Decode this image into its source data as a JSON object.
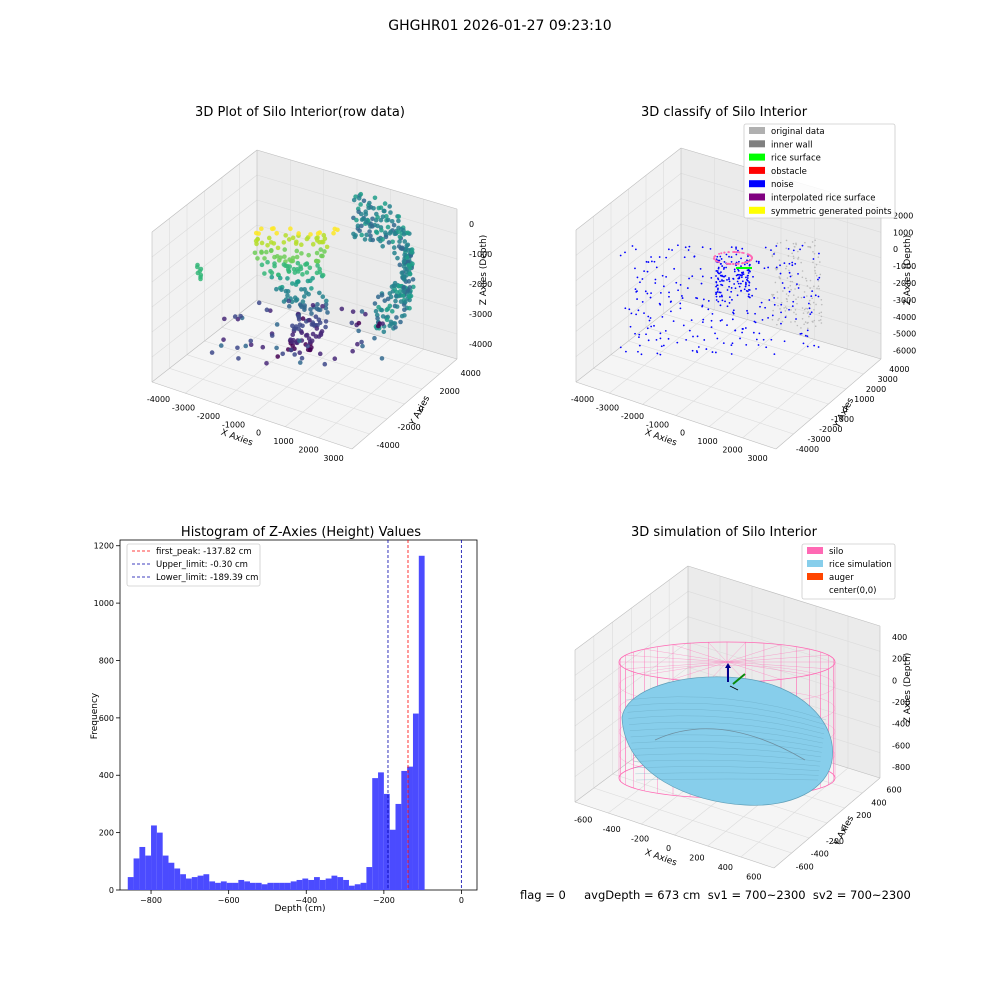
{
  "suptitle": "GHGHR01 2026-01-27 09:23:10",
  "footer": "flag = 0     avgDepth = 673 cm  sv1 = 700~2300  sv2 = 700~2300",
  "colors": {
    "hist": "#4b4bff",
    "silo": "#ff69b4",
    "rice": "#87ceeb",
    "auger": "#ff4500",
    "noise": "#0000ff"
  },
  "chart_data": [
    {
      "type": "scatter",
      "title": "3D Plot of Silo Interior(row data)",
      "xlabel": "X Axies",
      "ylabel": "Y Axies",
      "zlabel": "Z Axies (Depth)",
      "x_ticks": [
        "-4000",
        "-3000",
        "-2000",
        "-1000",
        "0",
        "1000",
        "2000",
        "3000"
      ],
      "y_ticks": [
        "-4000",
        "-2000",
        "0",
        "2000",
        "4000"
      ],
      "z_ticks": [
        "-4000",
        "-3000",
        "-2000",
        "-1000",
        "0"
      ],
      "colormap": "viridis (by depth)"
    },
    {
      "type": "scatter",
      "title": "3D classify of Silo Interior",
      "xlabel": "X Axies",
      "ylabel": "Y Axies",
      "zlabel": "Z Axies (Depth)",
      "x_ticks": [
        "-4000",
        "-3000",
        "-2000",
        "-1000",
        "0",
        "1000",
        "2000",
        "3000"
      ],
      "y_ticks": [
        "-4000",
        "-3000",
        "-2000",
        "-1000",
        "0",
        "1000",
        "2000",
        "3000",
        "4000"
      ],
      "z_ticks": [
        "-6000",
        "-5000",
        "-4000",
        "-3000",
        "-2000",
        "-1000",
        "0",
        "1000",
        "2000"
      ],
      "legend": [
        {
          "label": "original data",
          "color": "#b0b0b0"
        },
        {
          "label": "inner wall",
          "color": "#808080"
        },
        {
          "label": "rice surface",
          "color": "#00ff00"
        },
        {
          "label": "obstacle",
          "color": "#ff0000"
        },
        {
          "label": "noise",
          "color": "#0000ff"
        },
        {
          "label": "interpolated rice surface",
          "color": "#800080"
        },
        {
          "label": "symmetric generated points",
          "color": "#ffff00"
        }
      ],
      "legend_loc": "top-right"
    },
    {
      "type": "bar",
      "title": "Histogram of Z-Axies (Height) Values",
      "xlabel": "Depth (cm)",
      "ylabel": "Frequency",
      "xlim": [
        -880,
        40
      ],
      "ylim": [
        0,
        1220
      ],
      "x_ticks": [
        -800,
        -600,
        -400,
        -200,
        0
      ],
      "y_ticks": [
        0,
        200,
        400,
        600,
        800,
        1000,
        1200
      ],
      "bin_start": -860,
      "bin_width": 15,
      "values": [
        45,
        110,
        150,
        120,
        225,
        200,
        120,
        95,
        75,
        55,
        40,
        45,
        50,
        55,
        30,
        25,
        30,
        25,
        25,
        35,
        30,
        25,
        25,
        20,
        25,
        25,
        25,
        25,
        30,
        35,
        40,
        35,
        45,
        35,
        40,
        50,
        45,
        35,
        15,
        20,
        25,
        80,
        390,
        410,
        335,
        210,
        300,
        415,
        430,
        615,
        1165
      ],
      "lines": [
        {
          "label": "first_peak: -137.82 cm",
          "x": -137.82,
          "color": "#ff0000"
        },
        {
          "label": "Upper_limit: -0.30 cm",
          "x": -0.3,
          "color": "#0000aa"
        },
        {
          "label": "Lower_limit: -189.39 cm",
          "x": -189.39,
          "color": "#0000aa"
        }
      ],
      "legend_loc": "top-left"
    },
    {
      "type": "area",
      "title": "3D simulation of Silo Interior",
      "xlabel": "X Axies",
      "ylabel": "Y Axies",
      "zlabel": "Z Axies (Depth)",
      "x_ticks": [
        "-600",
        "-400",
        "-200",
        "0",
        "200",
        "400",
        "600"
      ],
      "y_ticks": [
        "-600",
        "-400",
        "-200",
        "0",
        "200",
        "400",
        "600"
      ],
      "z_ticks": [
        "-800",
        "-600",
        "-400",
        "-200",
        "0",
        "200",
        "400"
      ],
      "legend": [
        {
          "label": "silo",
          "color": "#ff69b4"
        },
        {
          "label": "rice simulation",
          "color": "#87ceeb"
        },
        {
          "label": "auger",
          "color": "#ff4500"
        },
        {
          "label": "center(0,0)",
          "color": "#ffffff"
        }
      ],
      "legend_loc": "top-right"
    }
  ]
}
